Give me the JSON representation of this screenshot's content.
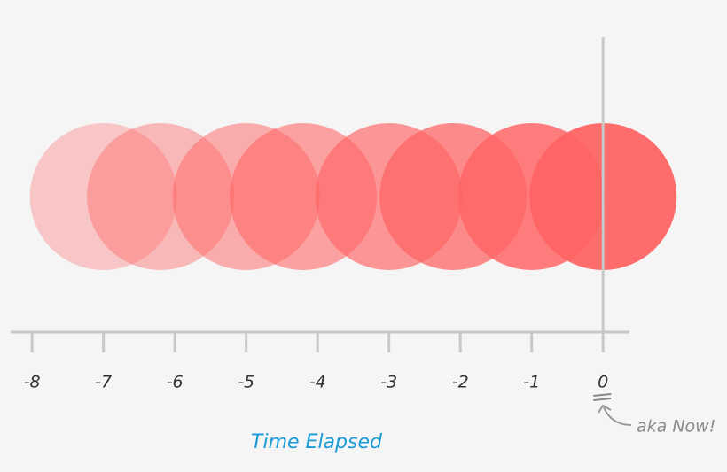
{
  "chart_data": {
    "type": "scatter",
    "x": [
      -7,
      -6.2,
      -5,
      -4.2,
      -3,
      -2.1,
      -1,
      0
    ],
    "color": "#ff6464",
    "opacities": [
      0.32,
      0.42,
      0.5,
      0.58,
      0.66,
      0.74,
      0.84,
      0.95
    ],
    "xlim": [
      -8.3,
      0.37
    ],
    "xticks": [
      -8,
      -7,
      -6,
      -5,
      -4,
      -3,
      -2,
      -1,
      0
    ],
    "xlabel": "Time Elapsed",
    "annotation": "aka Now!"
  }
}
